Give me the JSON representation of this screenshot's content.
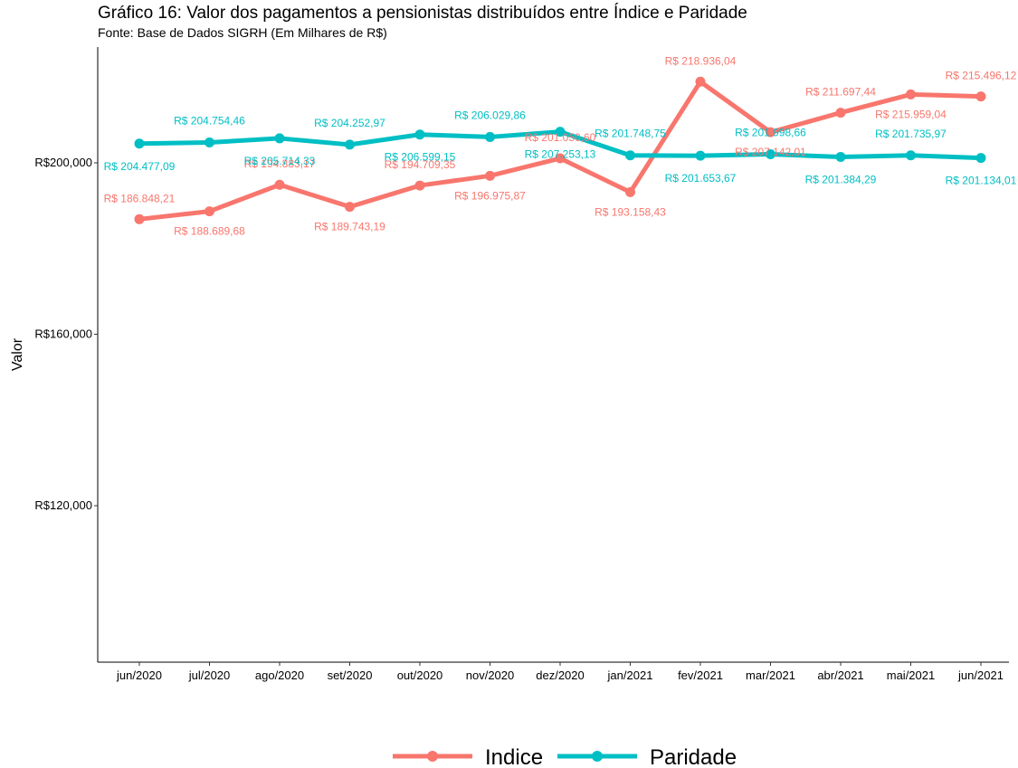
{
  "chart_data": {
    "type": "line",
    "title": "Gráfico 16: Valor dos pagamentos a pensionistas distribuídos entre Índice e Paridade",
    "subtitle": "Fonte: Base de Dados SIGRH (Em Milhares de R$)",
    "xlabel": "",
    "ylabel": "Valor",
    "categories": [
      "jun/2020",
      "jul/2020",
      "ago/2020",
      "set/2020",
      "out/2020",
      "nov/2020",
      "dez/2020",
      "jan/2021",
      "fev/2021",
      "mar/2021",
      "abr/2021",
      "mai/2021",
      "jun/2021"
    ],
    "yticks": [
      120000,
      160000,
      200000
    ],
    "ytick_labels": [
      "R$120,000",
      "R$160,000",
      "R$200,000"
    ],
    "ylim": [
      84000,
      227000
    ],
    "grid": false,
    "legend_position": "bottom",
    "series": [
      {
        "name": "Indice",
        "color": "#F8766D",
        "values": [
          186848.21,
          188689.68,
          194883.17,
          189743.19,
          194709.35,
          196975.87,
          201050.6,
          193158.43,
          218936.04,
          207142.01,
          211697.44,
          215959.04,
          215496.12
        ],
        "labels": [
          "R$ 186.848,21",
          "R$ 188.689,68",
          "R$ 194.883,17",
          "R$ 189.743,19",
          "R$ 194.709,35",
          "R$ 196.975,87",
          "R$ 201.050,60",
          "R$ 193.158,43",
          "R$ 218.936,04",
          "R$ 207.142,01",
          "R$ 211.697,44",
          "R$ 215.959,04",
          "R$ 215.496,12"
        ]
      },
      {
        "name": "Paridade",
        "color": "#00BFC4",
        "values": [
          204477.09,
          204754.46,
          205714.33,
          204252.97,
          206599.15,
          206029.86,
          207253.13,
          201748.75,
          201653.67,
          201998.66,
          201384.29,
          201735.97,
          201134.01
        ],
        "labels": [
          "R$ 204.477,09",
          "R$ 204.754,46",
          "R$ 205.714,33",
          "R$ 204.252,97",
          "R$ 206.599,15",
          "R$ 206.029,86",
          "R$ 207.253,13",
          "R$ 201.748,75",
          "R$ 201.653,67",
          "R$ 201.998,66",
          "R$ 201.384,29",
          "R$ 201.735,97",
          "R$ 201.134,01"
        ]
      }
    ]
  }
}
